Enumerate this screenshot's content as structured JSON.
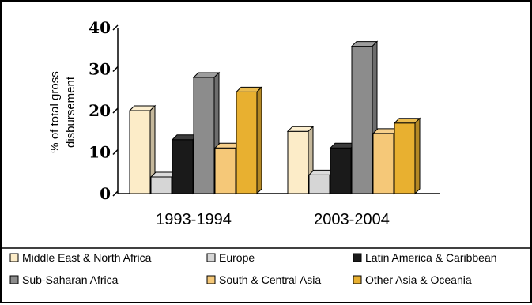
{
  "chart_data": {
    "type": "bar",
    "categories": [
      "1993-1994",
      "2003-2004"
    ],
    "ylabel_lines": [
      "% of  total gross",
      "disbursement"
    ],
    "ylim": [
      0,
      40
    ],
    "yticks": [
      "0",
      "10",
      "20",
      "30",
      "40"
    ],
    "grid": false,
    "legend_position": "bottom",
    "series": [
      {
        "name": "Middle East & North Africa",
        "color": "#fcecc8",
        "values": [
          20,
          15
        ]
      },
      {
        "name": "Europe",
        "color": "#d6d6d6",
        "values": [
          4,
          4.5
        ]
      },
      {
        "name": "Latin America & Caribbean",
        "color": "#1a1a1a",
        "values": [
          13,
          11
        ]
      },
      {
        "name": "Sub-Saharan Africa",
        "color": "#8c8c8c",
        "values": [
          28,
          35.5
        ]
      },
      {
        "name": "South & Central Asia",
        "color": "#f5c878",
        "values": [
          11,
          14.5
        ]
      },
      {
        "name": "Other Asia & Oceania",
        "color": "#e8b030",
        "values": [
          24.5,
          17
        ]
      }
    ]
  }
}
